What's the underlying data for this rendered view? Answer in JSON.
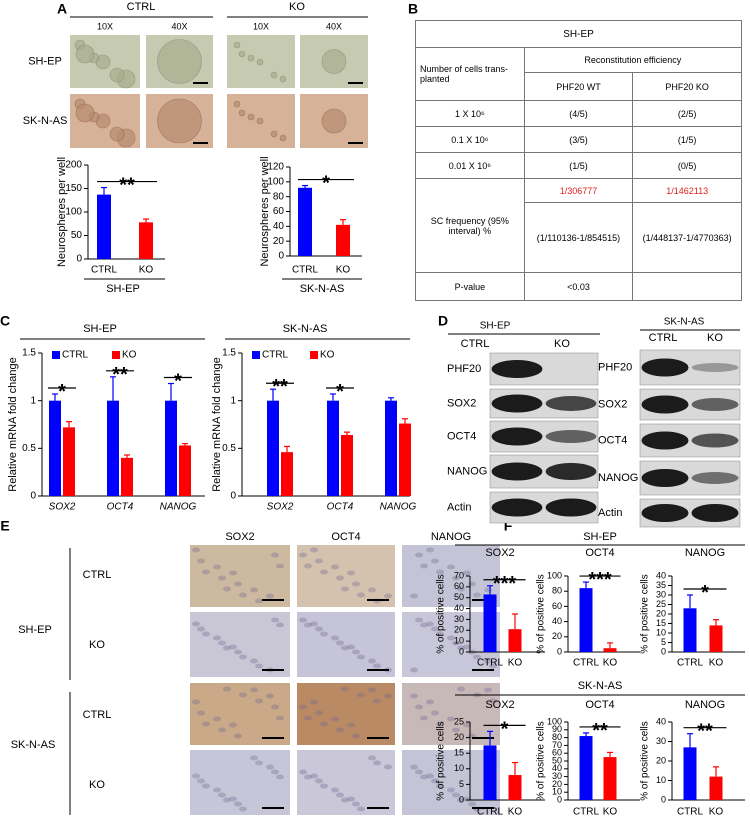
{
  "panel_labels": [
    "A",
    "B",
    "C",
    "D",
    "E",
    "F"
  ],
  "panel_a": {
    "groups": [
      "CTRL",
      "KO"
    ],
    "magnifications": [
      "10X",
      "40X",
      "10X",
      "40X"
    ],
    "rows": [
      "SH-EP",
      "SK-N-AS"
    ]
  },
  "table": {
    "title": "SH-EP",
    "header": {
      "rows_label": "Number of cells trans-planted",
      "group": "Reconstitution efficiency",
      "columns": [
        "PHF20 WT",
        "PHF20 KO"
      ]
    },
    "rows": [
      [
        "1 X 10⁶",
        "(4/5)",
        "(2/5)"
      ],
      [
        "0.1 X 10⁶",
        "(3/5)",
        "(1/5)"
      ],
      [
        "0.01 X 10⁶",
        "(1/5)",
        "(0/5)"
      ]
    ],
    "frequency": {
      "label": "SC frequency (95% interval) %",
      "estimates": [
        "1/306777",
        "1/1462113"
      ],
      "intervals": [
        "(1/110136-1/854515)",
        "(1/448137-1/4770363)"
      ]
    },
    "p_value": {
      "label": "P-value",
      "value": "<0.03"
    }
  },
  "panel_d": {
    "blots": [
      {
        "cell_line": "SH-EP",
        "lanes": [
          "CTRL",
          "KO"
        ],
        "proteins": [
          "PHF20",
          "SOX2",
          "OCT4",
          "NANOG",
          "Actin"
        ]
      },
      {
        "cell_line": "SK-N-AS",
        "lanes": [
          "CTRL",
          "KO"
        ],
        "proteins": [
          "PHF20",
          "SOX2",
          "OCT4",
          "NANOG",
          "Actin"
        ]
      }
    ]
  },
  "panel_e": {
    "columns": [
      "SOX2",
      "OCT4",
      "NANOG"
    ],
    "groups": [
      {
        "name": "SH-EP",
        "rows": [
          "CTRL",
          "KO"
        ]
      },
      {
        "name": "SK-N-AS",
        "rows": [
          "CTRL",
          "KO"
        ]
      }
    ]
  },
  "panel_f": {
    "groups": [
      "SH-EP",
      "SK-N-AS"
    ]
  },
  "chart_data": [
    {
      "type": "bar",
      "y_label": "Neurospheres per well",
      "x_label": "SH-EP",
      "categories": [
        "CTRL",
        "KO"
      ],
      "values": [
        137,
        78
      ],
      "errors": [
        15,
        7
      ],
      "colors": [
        "#0000ff",
        "#ff0000"
      ],
      "ylim": [
        0,
        200
      ],
      "yticks": [
        0,
        50,
        100,
        150,
        200
      ],
      "significance": "**"
    },
    {
      "type": "bar",
      "y_label": "Neurospheres per well",
      "x_label": "SK-N-AS",
      "categories": [
        "CTRL",
        "KO"
      ],
      "values": [
        92,
        42
      ],
      "errors": [
        3,
        7
      ],
      "colors": [
        "#0000ff",
        "#ff0000"
      ],
      "ylim": [
        0,
        120
      ],
      "yticks": [
        0,
        20,
        40,
        60,
        80,
        100,
        120
      ],
      "significance": "*"
    },
    {
      "type": "bar",
      "title": "SH-EP",
      "y_label": "Relative mRNA fold change",
      "categories": [
        "SOX2",
        "OCT4",
        "NANOG"
      ],
      "italic_categories": true,
      "series": [
        {
          "name": "CTRL",
          "color": "#0000ff",
          "values": [
            1,
            1,
            1
          ],
          "errors": [
            0.07,
            0.25,
            0.18
          ]
        },
        {
          "name": "KO",
          "color": "#ff0000",
          "values": [
            0.72,
            0.4,
            0.53
          ],
          "errors": [
            0.06,
            0.03,
            0.02
          ]
        }
      ],
      "ylim": [
        0,
        1.5
      ],
      "yticks": [
        0,
        0.5,
        1,
        1.5
      ],
      "significance": [
        "*",
        "**",
        "*"
      ]
    },
    {
      "type": "bar",
      "title": "SK-N-AS",
      "y_label": "Relative mRNA fold change",
      "categories": [
        "SOX2",
        "OCT4",
        "NANOG"
      ],
      "italic_categories": true,
      "series": [
        {
          "name": "CTRL",
          "color": "#0000ff",
          "values": [
            1,
            1,
            1
          ],
          "errors": [
            0.12,
            0.07,
            0.03
          ]
        },
        {
          "name": "KO",
          "color": "#ff0000",
          "values": [
            0.46,
            0.64,
            0.76
          ],
          "errors": [
            0.06,
            0.03,
            0.05
          ]
        }
      ],
      "ylim": [
        0,
        1.5
      ],
      "yticks": [
        0,
        0.5,
        1,
        1.5
      ],
      "significance": [
        "**",
        "*",
        null
      ]
    },
    {
      "type": "bar",
      "title": "SOX2",
      "y_label": "% of positive cells",
      "categories": [
        "CTRL",
        "KO"
      ],
      "values": [
        53,
        21
      ],
      "errors": [
        8,
        14
      ],
      "colors": [
        "#0000ff",
        "#ff0000"
      ],
      "ylim": [
        0,
        70
      ],
      "yticks": [
        0,
        10,
        20,
        30,
        40,
        50,
        60,
        70
      ],
      "significance": "***"
    },
    {
      "type": "bar",
      "title": "OCT4",
      "y_label": "% of positive cells",
      "categories": [
        "CTRL",
        "KO"
      ],
      "values": [
        84,
        5
      ],
      "errors": [
        8,
        7
      ],
      "colors": [
        "#0000ff",
        "#ff0000"
      ],
      "ylim": [
        0,
        100
      ],
      "yticks": [
        0,
        20,
        40,
        60,
        80,
        100
      ],
      "significance": "***"
    },
    {
      "type": "bar",
      "title": "NANOG",
      "y_label": "% of positive cells",
      "categories": [
        "CTRL",
        "KO"
      ],
      "values": [
        23,
        14
      ],
      "errors": [
        7,
        3
      ],
      "colors": [
        "#0000ff",
        "#ff0000"
      ],
      "ylim": [
        0,
        40
      ],
      "yticks": [
        0,
        5,
        10,
        15,
        20,
        25,
        30,
        35,
        40
      ],
      "significance": "*"
    },
    {
      "type": "bar",
      "title": "SOX2",
      "y_label": "% of positive cells",
      "categories": [
        "CTRL",
        "KO"
      ],
      "values": [
        17.5,
        8
      ],
      "errors": [
        4.5,
        4
      ],
      "colors": [
        "#0000ff",
        "#ff0000"
      ],
      "ylim": [
        0,
        25
      ],
      "yticks": [
        0,
        5,
        10,
        15,
        20,
        25
      ],
      "significance": "*"
    },
    {
      "type": "bar",
      "title": "OCT4",
      "y_label": "% of positive cells",
      "categories": [
        "CTRL",
        "KO"
      ],
      "values": [
        82,
        55
      ],
      "errors": [
        4,
        6
      ],
      "colors": [
        "#0000ff",
        "#ff0000"
      ],
      "ylim": [
        0,
        100
      ],
      "yticks": [
        0,
        10,
        20,
        30,
        40,
        50,
        60,
        70,
        80,
        90,
        100
      ],
      "significance": "**"
    },
    {
      "type": "bar",
      "title": "NANOG",
      "y_label": "% of positive cells",
      "categories": [
        "CTRL",
        "KO"
      ],
      "values": [
        27,
        12
      ],
      "errors": [
        7,
        5
      ],
      "colors": [
        "#0000ff",
        "#ff0000"
      ],
      "ylim": [
        0,
        40
      ],
      "yticks": [
        0,
        10,
        20,
        30,
        40
      ],
      "significance": "**"
    }
  ]
}
